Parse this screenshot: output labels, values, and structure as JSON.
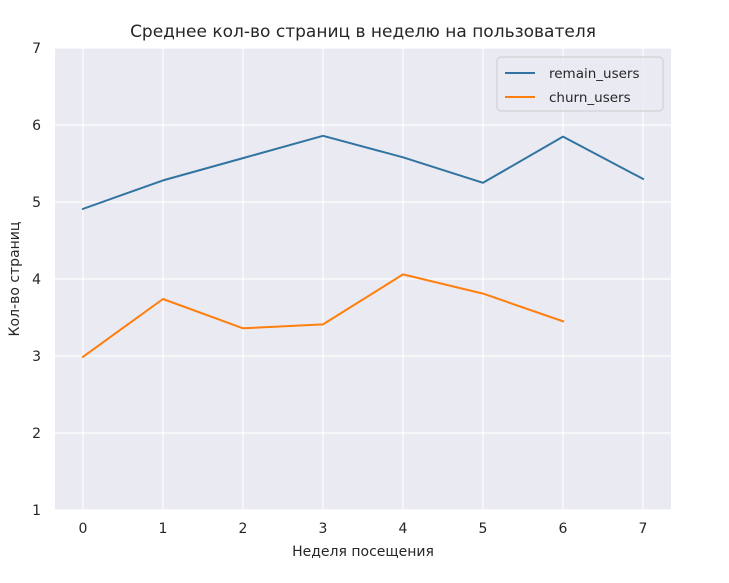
{
  "chart_data": {
    "type": "line",
    "title": "Среднее кол-во страниц в неделю на пользователя",
    "xlabel": "Неделя посещения",
    "ylabel": "Кол-во страниц",
    "xlim": [
      -0.35,
      7.35
    ],
    "ylim": [
      1,
      7
    ],
    "xticks": [
      0,
      1,
      2,
      3,
      4,
      5,
      6,
      7
    ],
    "yticks": [
      1,
      2,
      3,
      4,
      5,
      6,
      7
    ],
    "grid": true,
    "legend_position": "top-right",
    "series": [
      {
        "name": "remain_users",
        "color": "#3274a1",
        "x": [
          0,
          1,
          2,
          3,
          4,
          5,
          6,
          7
        ],
        "y": [
          4.91,
          5.28,
          5.57,
          5.86,
          5.58,
          5.25,
          5.85,
          5.3
        ]
      },
      {
        "name": "churn_users",
        "color": "#ff7f0e",
        "x": [
          0,
          1,
          2,
          3,
          4,
          5,
          6
        ],
        "y": [
          2.99,
          3.74,
          3.36,
          3.41,
          4.06,
          3.81,
          3.45
        ]
      }
    ]
  }
}
